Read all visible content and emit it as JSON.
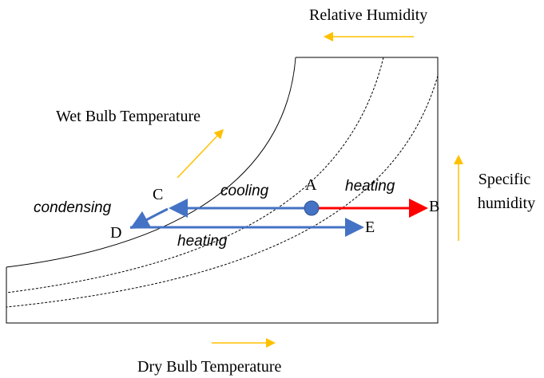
{
  "axis_labels": {
    "relative_humidity": "Relative Humidity",
    "wet_bulb": "Wet Bulb Temperature",
    "specific_humidity": [
      "Specific",
      "humidity"
    ],
    "dry_bulb": "Dry Bulb Temperature"
  },
  "points": [
    {
      "label": "A"
    },
    {
      "label": "B"
    },
    {
      "label": "C"
    },
    {
      "label": "D"
    },
    {
      "label": "E"
    }
  ],
  "processes": [
    {
      "label": "cooling"
    },
    {
      "label": "heating"
    },
    {
      "label": "condensing"
    },
    {
      "label": "heating"
    }
  ]
}
